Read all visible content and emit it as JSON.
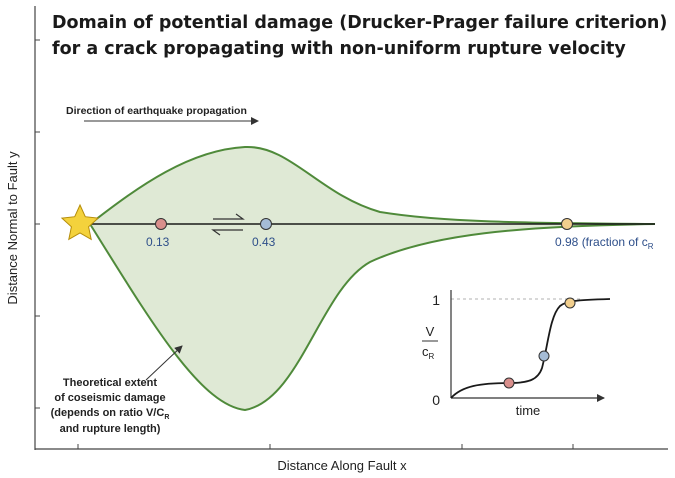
{
  "title": {
    "line1": "Domain of potential damage (Drucker-Prager failure criterion)",
    "line2": "for a crack propagating with non-uniform rupture velocity"
  },
  "axes": {
    "x_label": "Distance Along Fault x",
    "y_label": "Distance Normal to Fault y"
  },
  "direction_label": "Direction of earthquake propagation",
  "velocity_points": [
    {
      "label": "0.13",
      "color": "#d98f8c"
    },
    {
      "label": "0.43",
      "color": "#a5bcd6"
    },
    {
      "label": "0.98 (fraction of c",
      "sub": "R",
      "color": "#f2cf8d"
    }
  ],
  "annotation": {
    "line1": "Theoretical extent",
    "line2": "of coseismic damage",
    "line3a": "(depends on ratio V/C",
    "line3sub": "R",
    "line4": "and rupture length)"
  },
  "inset": {
    "y_top": "1",
    "y_bottom": "0",
    "ratio_num": "V",
    "ratio_den": "c",
    "ratio_den_sub": "R",
    "x_label": "time"
  },
  "colors": {
    "damage_fill": "#dfe9d5",
    "damage_edge": "#4f8a3a",
    "star": "#f4d23c",
    "fault": "#1a1a1a"
  }
}
